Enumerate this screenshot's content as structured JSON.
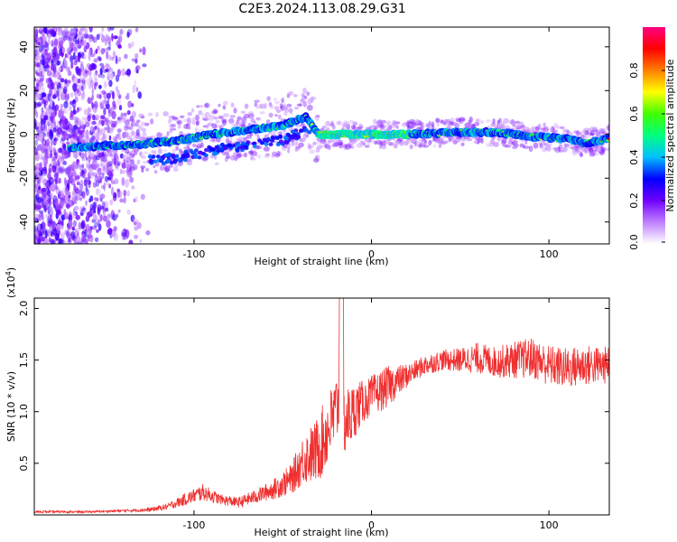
{
  "title": "C2E3.2024.113.08.29.G31",
  "chart_data": [
    {
      "type": "heatmap",
      "xlabel": "Height of straight line (km)",
      "ylabel": "Frequency (Hz)",
      "xlim": [
        -190,
        134
      ],
      "ylim": [
        -50,
        49
      ],
      "xticks": [
        -100,
        0,
        100
      ],
      "yticks": [
        -40,
        -20,
        0,
        20,
        40
      ],
      "colorbar": {
        "label": "Normalized spectral amplitude",
        "range": [
          0,
          1
        ],
        "ticks": [
          "0.0",
          "0.2",
          "0.4",
          "0.6",
          "0.8"
        ],
        "colors": [
          "#ffffff",
          "#c080ff",
          "#7000ff",
          "#0000ff",
          "#00c0ff",
          "#00ff80",
          "#40ff00",
          "#ffff00",
          "#ff8000",
          "#ff0000",
          "#ff0080"
        ]
      },
      "ridge": [
        {
          "x": -170,
          "f": -6
        },
        {
          "x": -140,
          "f": -5
        },
        {
          "x": -110,
          "f": -3
        },
        {
          "x": -90,
          "f": 0
        },
        {
          "x": -70,
          "f": 2
        },
        {
          "x": -50,
          "f": 4
        },
        {
          "x": -37,
          "f": 8
        },
        {
          "x": -30,
          "f": 0
        },
        {
          "x": 0,
          "f": 0
        },
        {
          "x": 20,
          "f": 0
        },
        {
          "x": 50,
          "f": 1
        },
        {
          "x": 70,
          "f": 1
        },
        {
          "x": 90,
          "f": -1
        },
        {
          "x": 110,
          "f": -2
        },
        {
          "x": 120,
          "f": -4
        },
        {
          "x": 134,
          "f": -2
        }
      ]
    },
    {
      "type": "line",
      "xlabel": "Height of straight line (km)",
      "ylabel": "SNR (10 * v/v)",
      "yexponent": "(x10",
      "yexponent_power": "4",
      "yexponent_close": ")",
      "xlim": [
        -190,
        134
      ],
      "ylim": [
        0,
        2.1
      ],
      "xticks": [
        -100,
        0,
        100
      ],
      "yticks": [
        0.5,
        1.0,
        1.5,
        2.0
      ],
      "ytick_labels": [
        "0.5",
        "1.0",
        "1.5",
        "2.0"
      ],
      "color": "#f03030",
      "series": [
        {
          "x": [
            -190,
            -160,
            -140,
            -125,
            -115,
            -105,
            -95,
            -85,
            -75,
            -65,
            -55,
            -45,
            -38,
            -32,
            -28,
            -24,
            -20,
            -18,
            -16,
            -12,
            -8,
            -4,
            0,
            5,
            10,
            15,
            20,
            25,
            30,
            40,
            50,
            60,
            70,
            80,
            90,
            100,
            110,
            120,
            134
          ],
          "y": [
            0.03,
            0.03,
            0.04,
            0.05,
            0.08,
            0.15,
            0.22,
            0.15,
            0.12,
            0.18,
            0.25,
            0.35,
            0.55,
            0.6,
            0.7,
            0.85,
            1.0,
            1.2,
            0.9,
            0.95,
            1.05,
            1.1,
            1.15,
            1.2,
            1.25,
            1.3,
            1.35,
            1.4,
            1.45,
            1.5,
            1.5,
            1.52,
            1.48,
            1.5,
            1.52,
            1.45,
            1.42,
            1.45,
            1.45
          ],
          "noise": [
            0.01,
            0.01,
            0.01,
            0.02,
            0.03,
            0.06,
            0.08,
            0.05,
            0.05,
            0.07,
            0.1,
            0.15,
            0.25,
            0.3,
            0.35,
            0.35,
            0.35,
            0.5,
            0.35,
            0.3,
            0.25,
            0.2,
            0.2,
            0.2,
            0.2,
            0.15,
            0.12,
            0.1,
            0.1,
            0.1,
            0.12,
            0.15,
            0.15,
            0.18,
            0.2,
            0.2,
            0.2,
            0.2,
            0.18
          ]
        }
      ]
    }
  ]
}
